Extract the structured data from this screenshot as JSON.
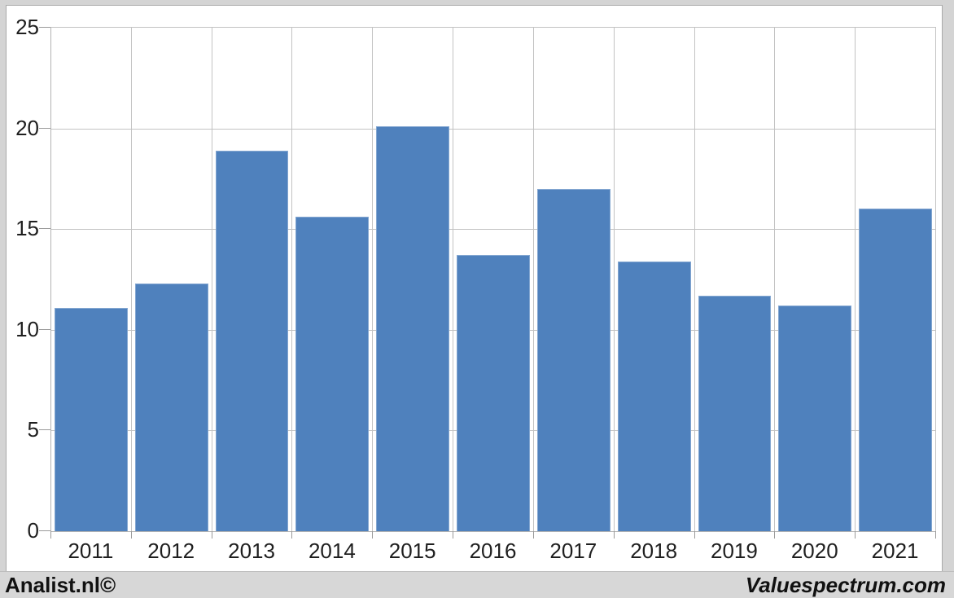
{
  "chart_data": {
    "type": "bar",
    "title": "",
    "xlabel": "",
    "ylabel": "",
    "categories": [
      "2011",
      "2012",
      "2013",
      "2014",
      "2015",
      "2016",
      "2017",
      "2018",
      "2019",
      "2020",
      "2021"
    ],
    "values": [
      11.1,
      12.3,
      18.9,
      15.6,
      20.1,
      13.7,
      17.0,
      13.4,
      11.7,
      11.2,
      16.0
    ],
    "ylim": [
      0,
      25
    ],
    "yticks": [
      0,
      5,
      10,
      15,
      20,
      25
    ],
    "grid": true,
    "legend": null,
    "bar_color": "#4f81bd"
  },
  "colors": {
    "bar": "#4f81bd",
    "bar_edge": "#84a7d1",
    "gridline": "#c3c3c3",
    "axis_line": "#b3b3b3",
    "tick": "#9a9a9a",
    "frame_bg": "#d4d4d4",
    "frame_line": "#a9a9a9",
    "footer_bg": "#d7d7d7",
    "text": "#1f1f1f"
  },
  "footer": {
    "left_brand": "Analist.nl©",
    "right_brand": "Valuespectrum.com"
  }
}
